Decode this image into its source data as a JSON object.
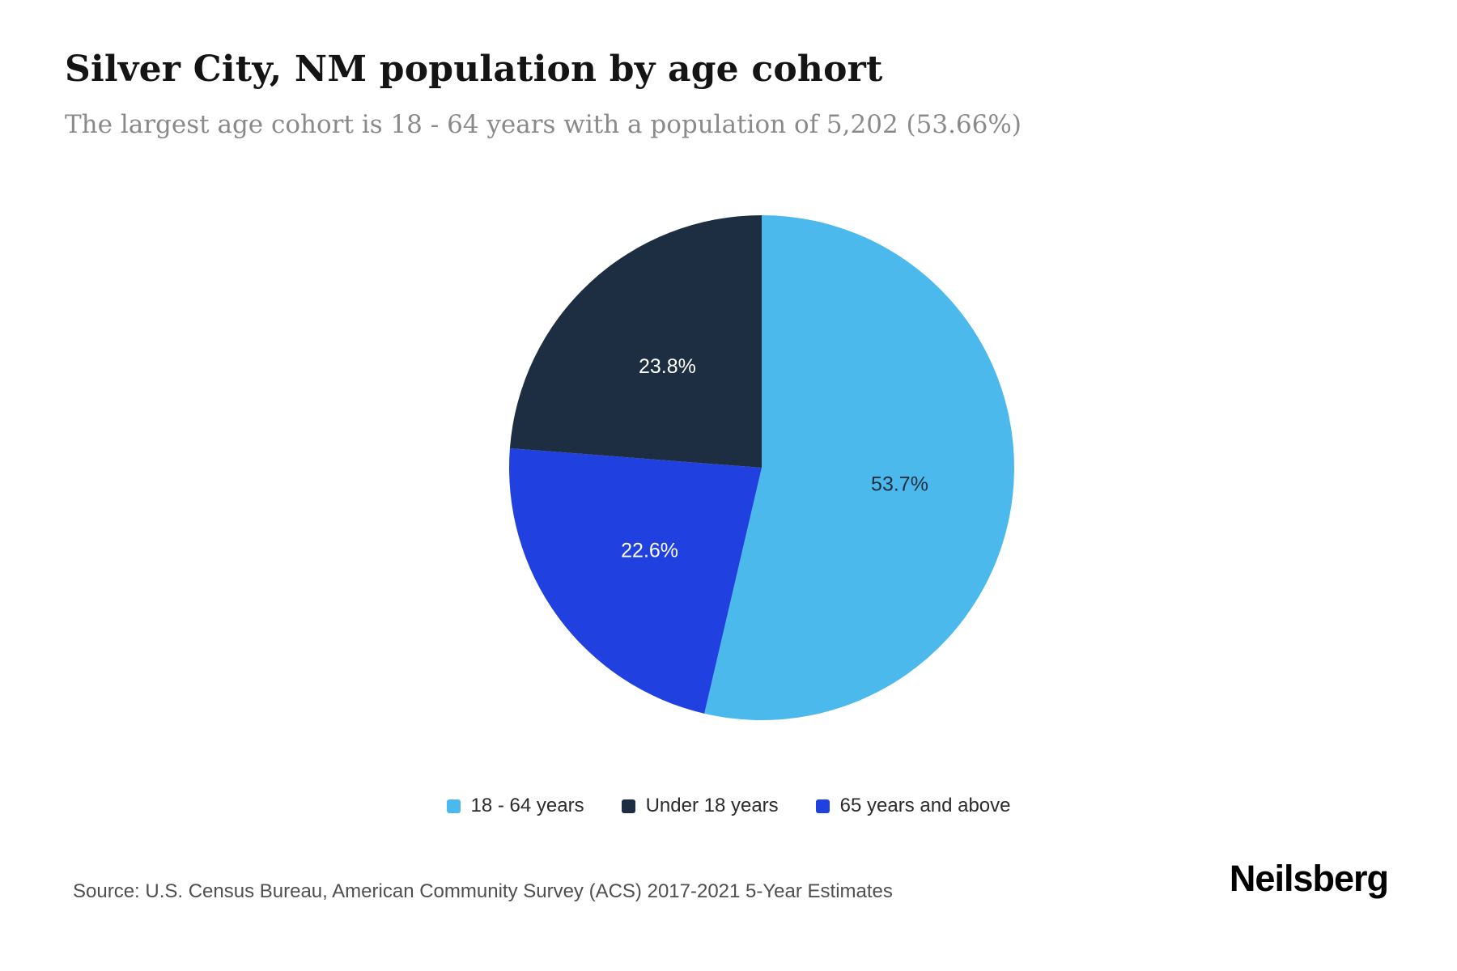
{
  "header": {
    "title": "Silver City, NM population by age cohort",
    "subtitle": "The largest age cohort is 18 - 64 years with a population of 5,202 (53.66%)"
  },
  "chart_data": {
    "type": "pie",
    "title": "Silver City, NM population by age cohort",
    "start_angle_deg": 0,
    "direction": "clockwise",
    "legend_position": "bottom",
    "largest_cohort": {
      "label": "18 - 64 years",
      "population": 5202,
      "pct": 53.66
    },
    "slices": [
      {
        "label": "18 - 64 years",
        "value": 53.7,
        "display": "53.7%",
        "color": "#4cb9ec",
        "label_color": "#1d2e42"
      },
      {
        "label": "65 years and above",
        "value": 22.6,
        "display": "22.6%",
        "color": "#2041e0",
        "label_color": "#ffffff"
      },
      {
        "label": "Under 18 years",
        "value": 23.8,
        "display": "23.8%",
        "color": "#1d2e42",
        "label_color": "#ffffff"
      }
    ],
    "legend": [
      {
        "label": "18 - 64 years",
        "color": "#4cb9ec"
      },
      {
        "label": "Under 18 years",
        "color": "#1d2e42"
      },
      {
        "label": "65 years and above",
        "color": "#2041e0"
      }
    ]
  },
  "footer": {
    "source": "Source: U.S. Census Bureau, American Community Survey (ACS) 2017-2021 5-Year Estimates",
    "brand": "Neilsberg"
  }
}
